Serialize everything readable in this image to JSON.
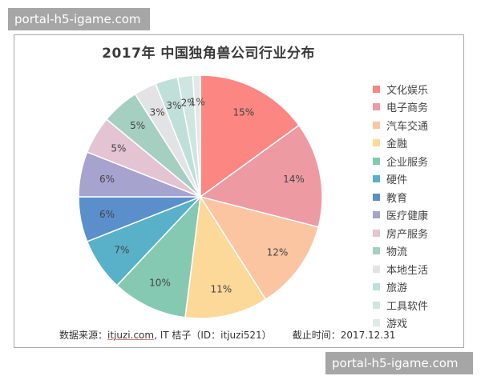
{
  "watermark": {
    "top": "portal-h5-igame.com",
    "bottom": "portal-h5-igame.com"
  },
  "footer": {
    "source_label": "数据来源：",
    "source_link": "itjuzi.com",
    "source_rest": ", IT 桔子（ID：itjuzi521）",
    "cutoff": "截止时间：2017.12.31"
  },
  "chart_data": {
    "type": "pie",
    "title": "2017年 中国独角兽公司行业分布",
    "unit": "%",
    "legend_position": "right",
    "start_angle_deg": 0,
    "direction": "clockwise",
    "categories": [
      "文化娱乐",
      "电子商务",
      "汽车交通",
      "金融",
      "企业服务",
      "硬件",
      "教育",
      "医疗健康",
      "房产服务",
      "物流",
      "本地生活",
      "旅游",
      "工具软件",
      "游戏"
    ],
    "values": [
      15,
      14,
      12,
      11,
      10,
      7,
      6,
      6,
      5,
      5,
      3,
      3,
      2,
      1
    ],
    "labels": [
      "15%",
      "14%",
      "12%",
      "11%",
      "10%",
      "7%",
      "6%",
      "6%",
      "5%",
      "5%",
      "3%",
      "3%",
      "2%",
      "1%"
    ],
    "colors": [
      "#fb8682",
      "#ee9aa3",
      "#fbc5a2",
      "#fcd899",
      "#86c9b3",
      "#58b1c8",
      "#5a8fcc",
      "#a6a3cf",
      "#e4c3d3",
      "#a5cfc0",
      "#e3e3e5",
      "#bfe0d8",
      "#cfe5e0",
      "#dfe9e8"
    ]
  }
}
